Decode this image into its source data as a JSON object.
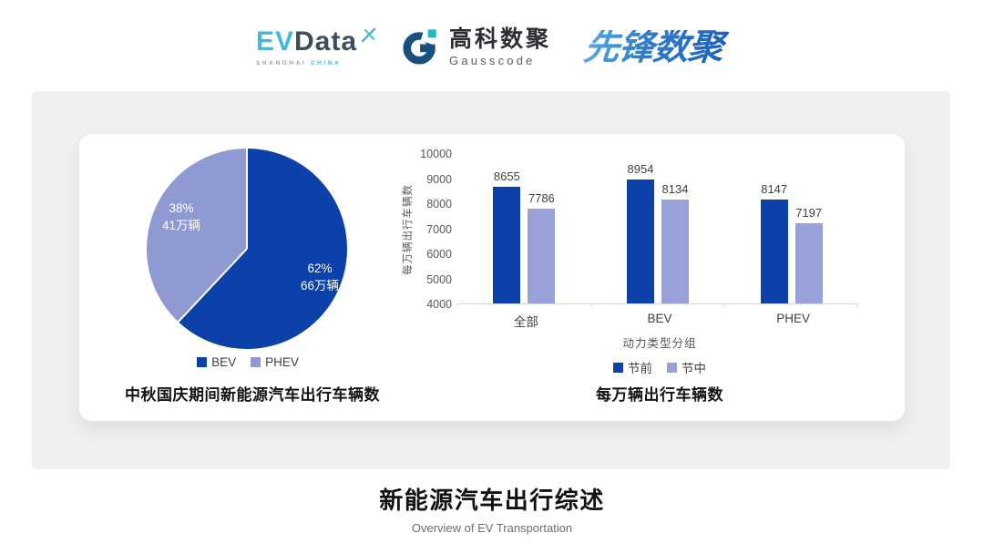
{
  "header": {
    "logos": {
      "evdata": {
        "ev": "EV",
        "data": "Data",
        "sub_left": "SHANGHAI",
        "sub_right": "CHINA"
      },
      "gausscode": {
        "cn": "高科数聚",
        "en": "Gausscode"
      },
      "pioneer": {
        "text": "先锋数聚"
      }
    }
  },
  "colors": {
    "series_dark_blue": "#0b41a8",
    "series_light_blue": "#98a1d8",
    "pie_light_blue": "#8f99d2",
    "logo_cyan": "#45b8d9",
    "logo_navy": "#3d4d5c",
    "gauss_navy": "#17507f",
    "gauss_teal": "#2ab5c3",
    "panel_gray": "#f0f0f1"
  },
  "chart_data": [
    {
      "type": "pie",
      "title": "中秋国庆期间新能源汽车出行车辆数",
      "slices": [
        {
          "label": "BEV",
          "percent": 62,
          "value_label": "62%",
          "count_label": "66万辆",
          "color": "#0b41a8"
        },
        {
          "label": "PHEV",
          "percent": 38,
          "value_label": "38%",
          "count_label": "41万辆",
          "color": "#8f99d2"
        }
      ],
      "legend_position": "bottom",
      "start_angle_deg": 0,
      "direction": "clockwise"
    },
    {
      "type": "bar",
      "title": "每万辆出行车辆数",
      "categories": [
        "全部",
        "BEV",
        "PHEV"
      ],
      "series": [
        {
          "name": "节前",
          "values": [
            8655,
            8954,
            8147
          ],
          "color": "#0b41a8"
        },
        {
          "name": "节中",
          "values": [
            7786,
            8134,
            7197
          ],
          "color": "#98a1d8"
        }
      ],
      "ylabel": "每万辆出行车辆数",
      "xlabel": "动力类型分组",
      "ylim": [
        4000,
        10000
      ],
      "yticks": [
        10000,
        9000,
        8000,
        7000,
        6000,
        5000,
        4000
      ],
      "grid": false,
      "legend_position": "bottom"
    }
  ],
  "footer": {
    "title": "新能源汽车出行综述",
    "subtitle": "Overview of EV Transportation"
  }
}
